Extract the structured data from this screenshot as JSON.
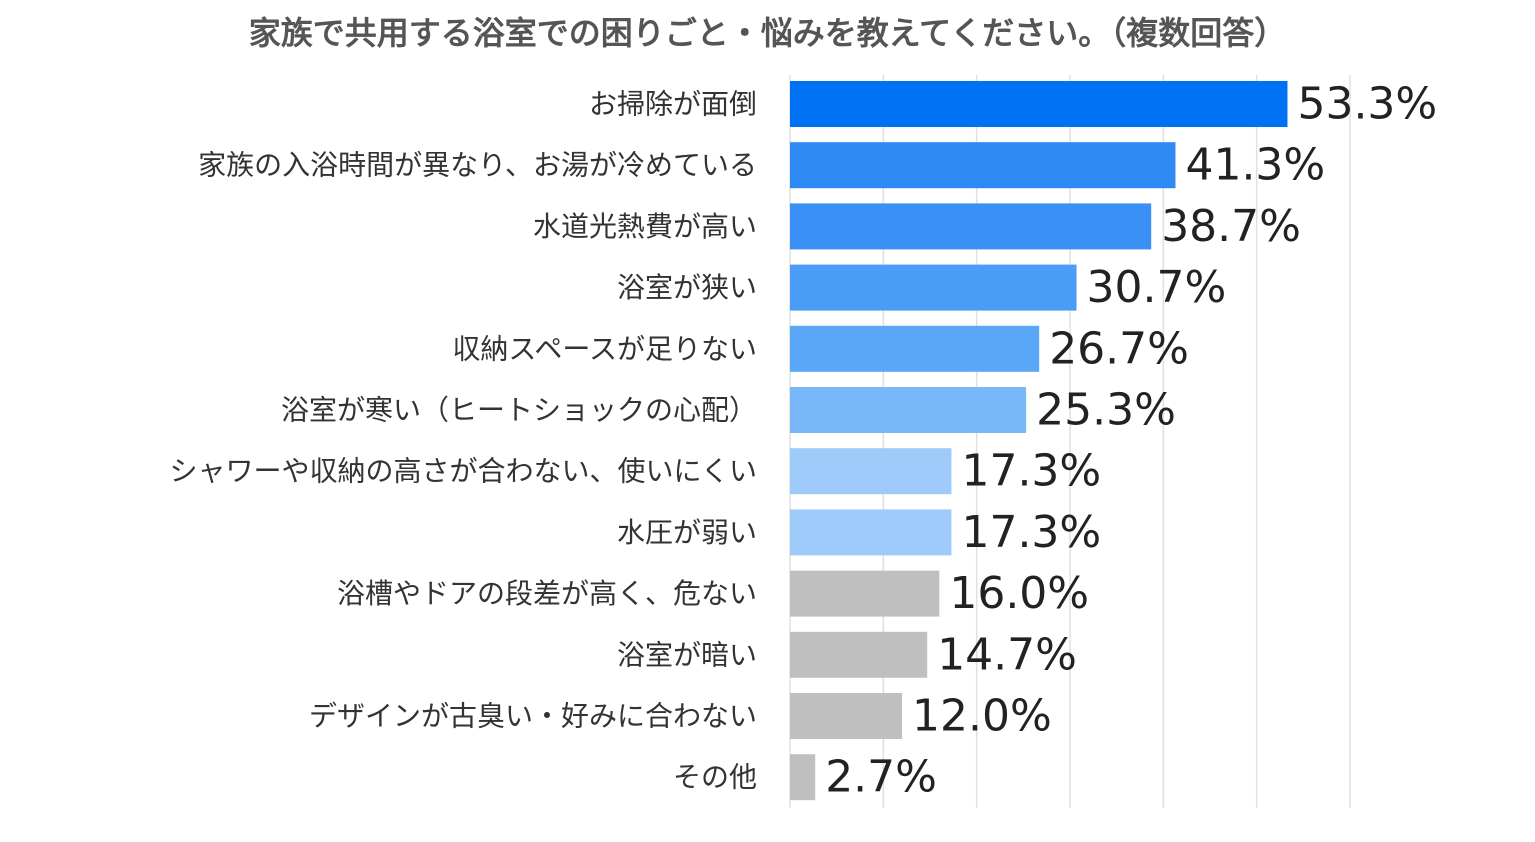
{
  "chart_data": {
    "type": "bar",
    "orientation": "horizontal",
    "title": "家族で共用する浴室での困りごと・悩みを教えてください。（複数回答）",
    "xlabel": "",
    "ylabel": "",
    "xlim": [
      0,
      60
    ],
    "grid": true,
    "legend": "none",
    "categories": [
      "お掃除が面倒",
      "家族の入浴時間が異なり、お湯が冷めている",
      "水道光熱費が高い",
      "浴室が狭い",
      "収納スペースが足りない",
      "浴室が寒い（ヒートショックの心配）",
      "シャワーや収納の高さが合わない、使いにくい",
      "水圧が弱い",
      "浴槽やドアの段差が高く、危ない",
      "浴室が暗い",
      "デザインが古臭い・好みに合わない",
      "その他"
    ],
    "values": [
      53.3,
      41.3,
      38.7,
      30.7,
      26.7,
      25.3,
      17.3,
      17.3,
      16.0,
      14.7,
      12.0,
      2.7
    ],
    "value_labels": [
      "53.3%",
      "41.3%",
      "38.7%",
      "30.7%",
      "26.7%",
      "25.3%",
      "17.3%",
      "17.3%",
      "16.0%",
      "14.7%",
      "12.0%",
      "2.7%"
    ],
    "colors": [
      "#0071f3",
      "#2e8af2",
      "#3a90f4",
      "#4a9cf6",
      "#5ba7f7",
      "#78b8f8",
      "#9ecbfa",
      "#9ecbfa",
      "#bfbfbf",
      "#bfbfbf",
      "#bfbfbf",
      "#bfbfbf"
    ]
  }
}
